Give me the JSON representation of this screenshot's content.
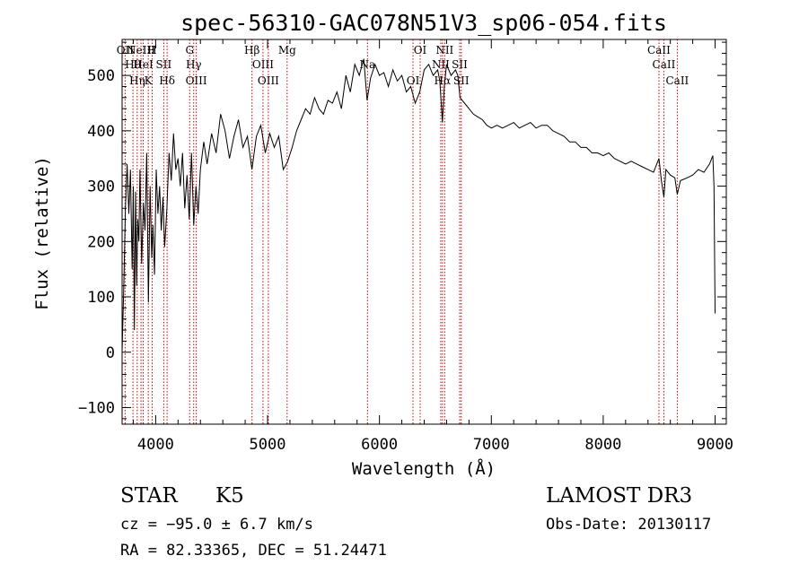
{
  "chart_data": {
    "type": "line",
    "title": "spec-56310-GAC078N51V3_sp06-054.fits",
    "xlabel": "Wavelength (Å)",
    "ylabel": "Flux (relative)",
    "xlim": [
      3700,
      9100
    ],
    "ylim": [
      -130,
      565
    ],
    "xticks": [
      4000,
      5000,
      6000,
      7000,
      8000,
      9000
    ],
    "yticks": [
      -100,
      0,
      100,
      200,
      300,
      400,
      500
    ],
    "line_color": "#000000",
    "marker_color": "#cc0000",
    "spectrum": [
      [
        3700,
        0
      ],
      [
        3715,
        120
      ],
      [
        3730,
        260
      ],
      [
        3745,
        340
      ],
      [
        3760,
        250
      ],
      [
        3775,
        330
      ],
      [
        3790,
        150
      ],
      [
        3800,
        300
      ],
      [
        3810,
        40
      ],
      [
        3820,
        290
      ],
      [
        3830,
        120
      ],
      [
        3840,
        240
      ],
      [
        3850,
        200
      ],
      [
        3860,
        330
      ],
      [
        3875,
        160
      ],
      [
        3890,
        270
      ],
      [
        3905,
        220
      ],
      [
        3920,
        360
      ],
      [
        3935,
        90
      ],
      [
        3950,
        300
      ],
      [
        3965,
        170
      ],
      [
        3975,
        230
      ],
      [
        3990,
        140
      ],
      [
        4005,
        330
      ],
      [
        4020,
        250
      ],
      [
        4035,
        300
      ],
      [
        4050,
        220
      ],
      [
        4065,
        280
      ],
      [
        4080,
        190
      ],
      [
        4100,
        260
      ],
      [
        4120,
        360
      ],
      [
        4140,
        310
      ],
      [
        4160,
        395
      ],
      [
        4180,
        330
      ],
      [
        4200,
        350
      ],
      [
        4220,
        300
      ],
      [
        4240,
        360
      ],
      [
        4260,
        260
      ],
      [
        4280,
        320
      ],
      [
        4300,
        240
      ],
      [
        4320,
        360
      ],
      [
        4340,
        230
      ],
      [
        4360,
        300
      ],
      [
        4380,
        250
      ],
      [
        4400,
        330
      ],
      [
        4430,
        380
      ],
      [
        4460,
        340
      ],
      [
        4500,
        395
      ],
      [
        4540,
        360
      ],
      [
        4580,
        430
      ],
      [
        4620,
        400
      ],
      [
        4660,
        350
      ],
      [
        4700,
        390
      ],
      [
        4740,
        420
      ],
      [
        4780,
        370
      ],
      [
        4820,
        390
      ],
      [
        4860,
        330
      ],
      [
        4900,
        390
      ],
      [
        4940,
        410
      ],
      [
        4980,
        360
      ],
      [
        5020,
        395
      ],
      [
        5060,
        370
      ],
      [
        5100,
        390
      ],
      [
        5140,
        330
      ],
      [
        5180,
        345
      ],
      [
        5220,
        370
      ],
      [
        5260,
        400
      ],
      [
        5300,
        420
      ],
      [
        5340,
        440
      ],
      [
        5380,
        430
      ],
      [
        5420,
        460
      ],
      [
        5460,
        440
      ],
      [
        5500,
        430
      ],
      [
        5540,
        455
      ],
      [
        5580,
        450
      ],
      [
        5620,
        470
      ],
      [
        5660,
        440
      ],
      [
        5700,
        500
      ],
      [
        5740,
        470
      ],
      [
        5780,
        520
      ],
      [
        5820,
        500
      ],
      [
        5860,
        530
      ],
      [
        5890,
        455
      ],
      [
        5920,
        495
      ],
      [
        5960,
        520
      ],
      [
        6000,
        500
      ],
      [
        6040,
        505
      ],
      [
        6080,
        480
      ],
      [
        6120,
        510
      ],
      [
        6160,
        490
      ],
      [
        6200,
        500
      ],
      [
        6240,
        470
      ],
      [
        6280,
        480
      ],
      [
        6320,
        450
      ],
      [
        6360,
        470
      ],
      [
        6400,
        510
      ],
      [
        6440,
        520
      ],
      [
        6480,
        500
      ],
      [
        6520,
        510
      ],
      [
        6540,
        490
      ],
      [
        6563,
        415
      ],
      [
        6580,
        480
      ],
      [
        6600,
        520
      ],
      [
        6640,
        500
      ],
      [
        6680,
        510
      ],
      [
        6700,
        500
      ],
      [
        6720,
        460
      ],
      [
        6760,
        450
      ],
      [
        6800,
        440
      ],
      [
        6840,
        430
      ],
      [
        6880,
        425
      ],
      [
        6920,
        420
      ],
      [
        6960,
        410
      ],
      [
        7000,
        405
      ],
      [
        7050,
        410
      ],
      [
        7100,
        405
      ],
      [
        7150,
        410
      ],
      [
        7200,
        415
      ],
      [
        7250,
        405
      ],
      [
        7300,
        410
      ],
      [
        7350,
        415
      ],
      [
        7400,
        405
      ],
      [
        7450,
        410
      ],
      [
        7500,
        410
      ],
      [
        7550,
        400
      ],
      [
        7600,
        395
      ],
      [
        7650,
        390
      ],
      [
        7700,
        380
      ],
      [
        7750,
        380
      ],
      [
        7800,
        370
      ],
      [
        7850,
        370
      ],
      [
        7900,
        360
      ],
      [
        7950,
        360
      ],
      [
        8000,
        355
      ],
      [
        8050,
        360
      ],
      [
        8100,
        350
      ],
      [
        8150,
        345
      ],
      [
        8200,
        340
      ],
      [
        8250,
        345
      ],
      [
        8300,
        340
      ],
      [
        8350,
        335
      ],
      [
        8400,
        330
      ],
      [
        8450,
        325
      ],
      [
        8498,
        350
      ],
      [
        8520,
        310
      ],
      [
        8542,
        280
      ],
      [
        8560,
        330
      ],
      [
        8600,
        320
      ],
      [
        8640,
        315
      ],
      [
        8662,
        285
      ],
      [
        8690,
        310
      ],
      [
        8750,
        315
      ],
      [
        8800,
        320
      ],
      [
        8850,
        330
      ],
      [
        8900,
        325
      ],
      [
        8950,
        340
      ],
      [
        8980,
        355
      ],
      [
        8990,
        300
      ],
      [
        9000,
        70
      ]
    ],
    "line_markers": [
      {
        "wl": 3727,
        "label": "OII"
      },
      {
        "wl": 3797,
        "label": "Hθ"
      },
      {
        "wl": 3835,
        "label": "Hη"
      },
      {
        "wl": 3869,
        "label": "NeIII"
      },
      {
        "wl": 3889,
        "label": "HeI"
      },
      {
        "wl": 3934,
        "label": "K"
      },
      {
        "wl": 3969,
        "label": "H"
      },
      {
        "wl": 4072,
        "label": "SII"
      },
      {
        "wl": 4102,
        "label": "Hδ"
      },
      {
        "wl": 4304,
        "label": "G"
      },
      {
        "wl": 4340,
        "label": "Hγ"
      },
      {
        "wl": 4363,
        "label": "OIII"
      },
      {
        "wl": 4861,
        "label": "Hβ"
      },
      {
        "wl": 4959,
        "label": "OIII"
      },
      {
        "wl": 5007,
        "label": "OIII"
      },
      {
        "wl": 5175,
        "label": "Mg"
      },
      {
        "wl": 5893,
        "label": "Na"
      },
      {
        "wl": 6300,
        "label": "OI"
      },
      {
        "wl": 6364,
        "label": "OI"
      },
      {
        "wl": 6548,
        "label": "NII"
      },
      {
        "wl": 6563,
        "label": "Hα"
      },
      {
        "wl": 6583,
        "label": "NII"
      },
      {
        "wl": 6717,
        "label": "SII"
      },
      {
        "wl": 6731,
        "label": "SII"
      },
      {
        "wl": 8498,
        "label": "CaII"
      },
      {
        "wl": 8542,
        "label": "CaII"
      },
      {
        "wl": 8662,
        "label": "CaII"
      }
    ]
  },
  "info": {
    "class": "STAR",
    "subclass": "K5",
    "survey": "LAMOST DR3",
    "cz": "cz = −95.0 ± 6.7 km/s",
    "obs_date": "Obs-Date: 20130117",
    "coords": "RA =  82.33365, DEC =  51.24471"
  }
}
